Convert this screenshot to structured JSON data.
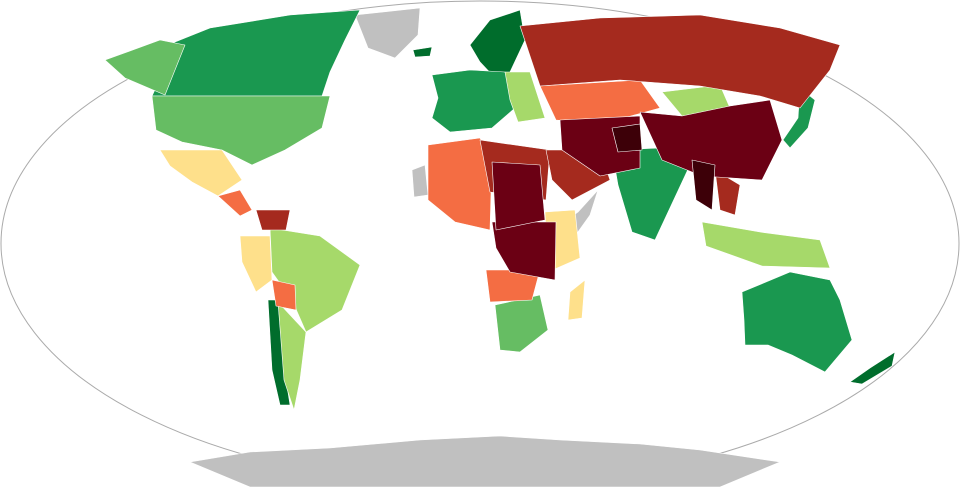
{
  "map": {
    "type": "choropleth-world-map",
    "projection": "robinson-like",
    "legend": "none",
    "palette": {
      "cat1": "#006d2c",
      "cat2": "#1a9850",
      "cat3": "#66bd63",
      "cat4": "#a6d96a",
      "cat5": "#fee08b",
      "cat6": "#f46d43",
      "cat7": "#a52a1e",
      "cat8": "#6b0014",
      "cat9": "#3d0008",
      "nodata": "#c0c0c0",
      "ocean": "#ffffff",
      "border": "#aaaaaa"
    }
  }
}
